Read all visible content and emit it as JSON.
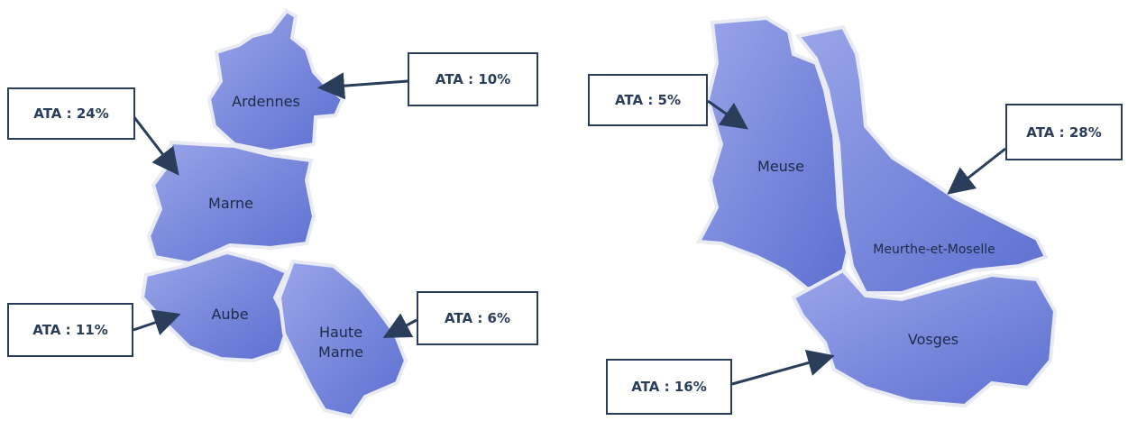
{
  "regions": [
    {
      "name": "Ardennes",
      "label": "ATA : 10%"
    },
    {
      "name": "Marne",
      "label": "ATA : 24%"
    },
    {
      "name": "Aube",
      "label": "ATA : 11%"
    },
    {
      "name": "Haute Marne",
      "label": "ATA : 6%"
    },
    {
      "name": "Meuse",
      "label": "ATA : 5%"
    },
    {
      "name": "Meurthe-et-Moselle",
      "label": "ATA : 28%"
    },
    {
      "name": "Vosges",
      "label": "ATA : 16%"
    }
  ]
}
